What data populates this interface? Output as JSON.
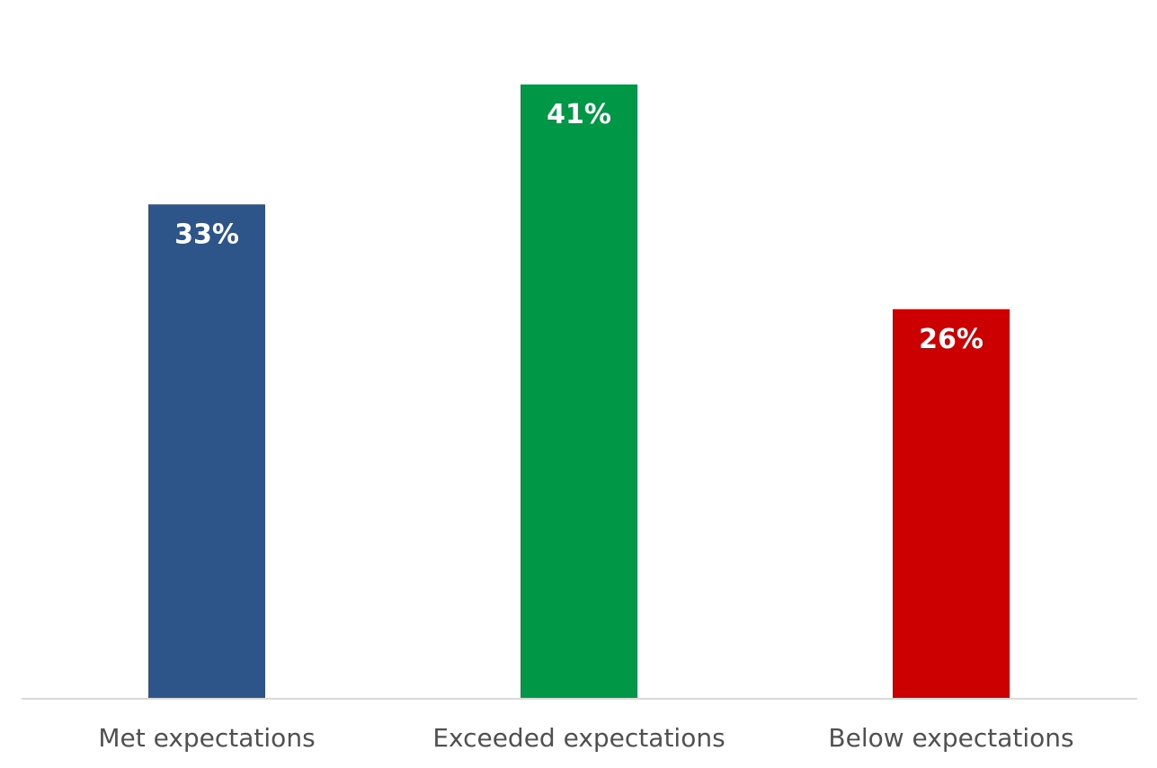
{
  "chart_data": {
    "type": "bar",
    "categories": [
      "Met expectations",
      "Exceeded expectations",
      "Below expectations"
    ],
    "values": [
      33,
      41,
      26
    ],
    "data_labels": [
      "33%",
      "41%",
      "26%"
    ],
    "colors": [
      "#2d5589",
      "#009846",
      "#cc0000"
    ],
    "ylim": [
      0,
      41
    ],
    "grid": false,
    "legend": "none",
    "axis_color": "#d9d9d9"
  }
}
